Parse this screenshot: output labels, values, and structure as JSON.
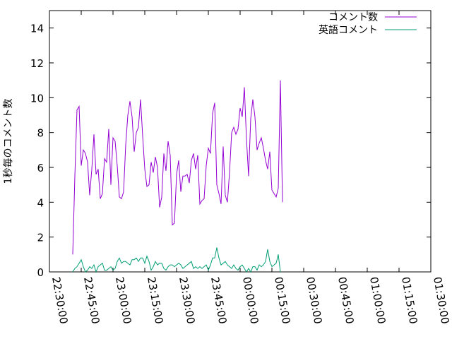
{
  "chart_data": {
    "type": "line",
    "ylabel": "1秒毎のコメント数",
    "ylim": [
      0,
      15
    ],
    "yticks": [
      0,
      2,
      4,
      6,
      8,
      10,
      12,
      14
    ],
    "xrange": [
      "22:30:00",
      "01:30:00"
    ],
    "xtick_labels": [
      "22:30:00",
      "22:45:00",
      "23:00:00",
      "23:15:00",
      "23:30:00",
      "23:45:00",
      "00:00:00",
      "00:15:00",
      "00:30:00",
      "00:45:00",
      "01:00:00",
      "01:15:00",
      "01:30:00"
    ],
    "legend_position": "top-right",
    "grid": false,
    "series": [
      {
        "name": "コメント数",
        "color": "#9400d3",
        "points": [
          [
            "22:41:00",
            1.0
          ],
          [
            "22:42:00",
            5.5
          ],
          [
            "22:43:00",
            9.3
          ],
          [
            "22:44:00",
            9.5
          ],
          [
            "22:45:00",
            6.1
          ],
          [
            "22:46:00",
            7.0
          ],
          [
            "22:47:00",
            6.8
          ],
          [
            "22:48:00",
            6.3
          ],
          [
            "22:49:00",
            4.4
          ],
          [
            "22:50:00",
            5.9
          ],
          [
            "22:51:00",
            7.9
          ],
          [
            "22:52:00",
            5.6
          ],
          [
            "22:53:00",
            5.9
          ],
          [
            "22:54:00",
            4.2
          ],
          [
            "22:55:00",
            4.5
          ],
          [
            "22:56:00",
            6.5
          ],
          [
            "22:57:00",
            6.3
          ],
          [
            "22:58:00",
            8.2
          ],
          [
            "22:59:00",
            5.0
          ],
          [
            "23:00:00",
            7.7
          ],
          [
            "23:01:00",
            7.5
          ],
          [
            "23:02:00",
            6.1
          ],
          [
            "23:03:00",
            4.3
          ],
          [
            "23:04:00",
            4.2
          ],
          [
            "23:05:00",
            4.6
          ],
          [
            "23:06:00",
            7.3
          ],
          [
            "23:07:00",
            9.0
          ],
          [
            "23:08:00",
            9.8
          ],
          [
            "23:09:00",
            8.9
          ],
          [
            "23:10:00",
            6.9
          ],
          [
            "23:11:00",
            8.0
          ],
          [
            "23:12:00",
            8.3
          ],
          [
            "23:13:00",
            9.9
          ],
          [
            "23:14:00",
            7.8
          ],
          [
            "23:15:00",
            5.9
          ],
          [
            "23:16:00",
            4.9
          ],
          [
            "23:17:00",
            5.0
          ],
          [
            "23:18:00",
            6.3
          ],
          [
            "23:19:00",
            5.7
          ],
          [
            "23:20:00",
            6.6
          ],
          [
            "23:21:00",
            6.0
          ],
          [
            "23:22:00",
            3.7
          ],
          [
            "23:23:00",
            4.3
          ],
          [
            "23:24:00",
            6.8
          ],
          [
            "23:25:00",
            5.8
          ],
          [
            "23:26:00",
            7.5
          ],
          [
            "23:27:00",
            6.7
          ],
          [
            "23:28:00",
            2.7
          ],
          [
            "23:29:00",
            2.8
          ],
          [
            "23:30:00",
            5.6
          ],
          [
            "23:31:00",
            6.4
          ],
          [
            "23:32:00",
            4.6
          ],
          [
            "23:33:00",
            5.5
          ],
          [
            "23:34:00",
            5.5
          ],
          [
            "23:35:00",
            5.6
          ],
          [
            "23:36:00",
            5.1
          ],
          [
            "23:37:00",
            6.4
          ],
          [
            "23:38:00",
            6.8
          ],
          [
            "23:39:00",
            5.9
          ],
          [
            "23:40:00",
            6.7
          ],
          [
            "23:41:00",
            3.9
          ],
          [
            "23:42:00",
            4.1
          ],
          [
            "23:43:00",
            4.2
          ],
          [
            "23:44:00",
            6.1
          ],
          [
            "23:45:00",
            7.1
          ],
          [
            "23:46:00",
            6.8
          ],
          [
            "23:47:00",
            9.1
          ],
          [
            "23:48:00",
            9.7
          ],
          [
            "23:49:00",
            5.0
          ],
          [
            "23:50:00",
            4.5
          ],
          [
            "23:51:00",
            3.9
          ],
          [
            "23:52:00",
            7.2
          ],
          [
            "23:53:00",
            4.4
          ],
          [
            "23:54:00",
            4.0
          ],
          [
            "23:55:00",
            5.7
          ],
          [
            "23:56:00",
            8.0
          ],
          [
            "23:57:00",
            8.3
          ],
          [
            "23:58:00",
            7.9
          ],
          [
            "23:59:00",
            8.2
          ],
          [
            "00:00:00",
            9.4
          ],
          [
            "00:01:00",
            8.9
          ],
          [
            "00:02:00",
            10.6
          ],
          [
            "00:03:00",
            7.6
          ],
          [
            "00:04:00",
            5.5
          ],
          [
            "00:05:00",
            8.8
          ],
          [
            "00:06:00",
            9.9
          ],
          [
            "00:07:00",
            8.9
          ],
          [
            "00:08:00",
            7.0
          ],
          [
            "00:09:00",
            7.4
          ],
          [
            "00:10:00",
            7.7
          ],
          [
            "00:11:00",
            7.1
          ],
          [
            "00:12:00",
            6.4
          ],
          [
            "00:13:00",
            5.9
          ],
          [
            "00:14:00",
            6.9
          ],
          [
            "00:15:00",
            4.7
          ],
          [
            "00:16:00",
            4.5
          ],
          [
            "00:17:00",
            4.3
          ],
          [
            "00:18:00",
            4.8
          ],
          [
            "00:19:00",
            11.0
          ],
          [
            "00:20:00",
            4.0
          ]
        ]
      },
      {
        "name": "英語コメント",
        "color": "#009e73",
        "points": [
          [
            "22:41:00",
            0.0
          ],
          [
            "22:42:00",
            0.2
          ],
          [
            "22:43:00",
            0.3
          ],
          [
            "22:44:00",
            0.5
          ],
          [
            "22:45:00",
            0.7
          ],
          [
            "22:46:00",
            0.3
          ],
          [
            "22:47:00",
            0.0
          ],
          [
            "22:48:00",
            0.1
          ],
          [
            "22:49:00",
            0.3
          ],
          [
            "22:50:00",
            0.2
          ],
          [
            "22:51:00",
            0.4
          ],
          [
            "22:52:00",
            0.0
          ],
          [
            "22:53:00",
            0.3
          ],
          [
            "22:54:00",
            0.4
          ],
          [
            "22:55:00",
            0.5
          ],
          [
            "22:56:00",
            0.1
          ],
          [
            "22:57:00",
            0.1
          ],
          [
            "22:58:00",
            0.2
          ],
          [
            "22:59:00",
            0.3
          ],
          [
            "23:00:00",
            0.1
          ],
          [
            "23:01:00",
            0.2
          ],
          [
            "23:02:00",
            0.6
          ],
          [
            "23:03:00",
            0.8
          ],
          [
            "23:04:00",
            0.5
          ],
          [
            "23:05:00",
            0.6
          ],
          [
            "23:06:00",
            0.6
          ],
          [
            "23:07:00",
            0.5
          ],
          [
            "23:08:00",
            0.4
          ],
          [
            "23:09:00",
            0.7
          ],
          [
            "23:10:00",
            0.7
          ],
          [
            "23:11:00",
            0.8
          ],
          [
            "23:12:00",
            0.6
          ],
          [
            "23:13:00",
            0.8
          ],
          [
            "23:14:00",
            0.8
          ],
          [
            "23:15:00",
            0.5
          ],
          [
            "23:16:00",
            0.9
          ],
          [
            "23:17:00",
            0.6
          ],
          [
            "23:18:00",
            0.1
          ],
          [
            "23:19:00",
            0.3
          ],
          [
            "23:20:00",
            0.6
          ],
          [
            "23:21:00",
            0.4
          ],
          [
            "23:22:00",
            0.5
          ],
          [
            "23:23:00",
            0.5
          ],
          [
            "23:24:00",
            0.2
          ],
          [
            "23:25:00",
            0.1
          ],
          [
            "23:26:00",
            0.3
          ],
          [
            "23:27:00",
            0.4
          ],
          [
            "23:28:00",
            0.4
          ],
          [
            "23:29:00",
            0.3
          ],
          [
            "23:30:00",
            0.4
          ],
          [
            "23:31:00",
            0.5
          ],
          [
            "23:32:00",
            0.4
          ],
          [
            "23:33:00",
            0.2
          ],
          [
            "23:34:00",
            0.3
          ],
          [
            "23:35:00",
            0.4
          ],
          [
            "23:36:00",
            0.5
          ],
          [
            "23:37:00",
            0.6
          ],
          [
            "23:38:00",
            0.2
          ],
          [
            "23:39:00",
            0.3
          ],
          [
            "23:40:00",
            0.2
          ],
          [
            "23:41:00",
            0.3
          ],
          [
            "23:42:00",
            0.2
          ],
          [
            "23:43:00",
            0.3
          ],
          [
            "23:44:00",
            0.4
          ],
          [
            "23:45:00",
            0.1
          ],
          [
            "23:46:00",
            0.4
          ],
          [
            "23:47:00",
            0.8
          ],
          [
            "23:48:00",
            0.8
          ],
          [
            "23:49:00",
            1.4
          ],
          [
            "23:50:00",
            0.8
          ],
          [
            "23:51:00",
            0.4
          ],
          [
            "23:52:00",
            0.5
          ],
          [
            "23:53:00",
            0.6
          ],
          [
            "23:54:00",
            0.4
          ],
          [
            "23:55:00",
            0.3
          ],
          [
            "23:56:00",
            0.2
          ],
          [
            "23:57:00",
            0.4
          ],
          [
            "23:58:00",
            0.2
          ],
          [
            "23:59:00",
            0.1
          ],
          [
            "00:00:00",
            0.3
          ],
          [
            "00:01:00",
            0.4
          ],
          [
            "00:02:00",
            0.2
          ],
          [
            "00:03:00",
            0.0
          ],
          [
            "00:04:00",
            0.2
          ],
          [
            "00:05:00",
            0.0
          ],
          [
            "00:06:00",
            0.3
          ],
          [
            "00:07:00",
            0.3
          ],
          [
            "00:08:00",
            0.1
          ],
          [
            "00:09:00",
            0.4
          ],
          [
            "00:10:00",
            0.3
          ],
          [
            "00:11:00",
            0.4
          ],
          [
            "00:12:00",
            0.6
          ],
          [
            "00:13:00",
            1.3
          ],
          [
            "00:14:00",
            0.6
          ],
          [
            "00:15:00",
            0.3
          ],
          [
            "00:16:00",
            0.4
          ],
          [
            "00:17:00",
            0.5
          ],
          [
            "00:18:00",
            1.0
          ],
          [
            "00:19:00",
            0.0
          ]
        ]
      }
    ]
  }
}
